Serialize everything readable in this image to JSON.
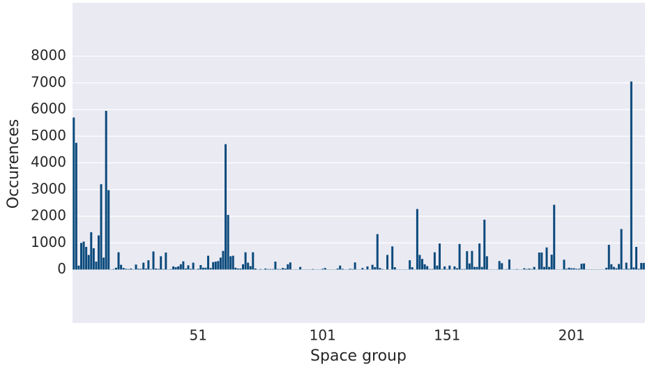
{
  "chart_data": {
    "type": "bar",
    "xlabel": "Space group",
    "ylabel": "Occurences",
    "color": "#0b4a7c",
    "grid": true,
    "ylim": [
      -2000,
      10000
    ],
    "yticks": [
      0,
      1000,
      2000,
      3000,
      4000,
      5000,
      6000,
      7000,
      8000
    ],
    "categories": [
      null,
      null,
      null,
      null,
      null,
      null,
      null,
      null,
      null,
      null,
      null,
      null,
      null,
      null,
      null,
      null,
      null,
      null,
      null,
      null,
      null,
      null,
      null,
      null,
      null,
      null,
      null,
      null,
      null,
      null,
      null,
      null,
      null,
      null,
      null,
      null,
      null,
      null,
      null,
      null,
      null,
      null,
      null,
      null,
      null,
      null,
      null,
      null,
      null,
      null,
      "51",
      null,
      null,
      null,
      null,
      null,
      null,
      null,
      null,
      null,
      null,
      null,
      null,
      null,
      null,
      null,
      null,
      null,
      null,
      null,
      null,
      null,
      null,
      null,
      null,
      null,
      null,
      null,
      null,
      null,
      null,
      null,
      null,
      null,
      null,
      null,
      null,
      null,
      null,
      null,
      null,
      null,
      null,
      null,
      null,
      null,
      null,
      null,
      null,
      null,
      "101",
      null,
      null,
      null,
      null,
      null,
      null,
      null,
      null,
      null,
      null,
      null,
      null,
      null,
      null,
      null,
      null,
      null,
      null,
      null,
      null,
      null,
      null,
      null,
      null,
      null,
      null,
      null,
      null,
      null,
      null,
      null,
      null,
      null,
      null,
      null,
      null,
      null,
      null,
      null,
      null,
      null,
      null,
      null,
      null,
      null,
      null,
      null,
      null,
      null,
      "151",
      null,
      null,
      null,
      null,
      null,
      null,
      null,
      null,
      null,
      null,
      null,
      null,
      null,
      null,
      null,
      null,
      null,
      null,
      null,
      null,
      null,
      null,
      null,
      null,
      null,
      null,
      null,
      null,
      null,
      null,
      null,
      null,
      null,
      null,
      null,
      null,
      null,
      null,
      null,
      null,
      null,
      null,
      null,
      null,
      null,
      null,
      null,
      null,
      null,
      "201",
      null,
      null,
      null,
      null,
      null,
      null,
      null,
      null,
      null,
      null,
      null,
      null,
      null,
      null,
      null,
      null,
      null,
      null,
      null,
      null,
      null,
      null,
      null,
      null,
      null,
      null,
      null,
      null,
      null
    ],
    "values": [
      5700,
      4750,
      150,
      1000,
      1050,
      850,
      550,
      1400,
      800,
      300,
      1280,
      3200,
      450,
      5950,
      2980,
      10,
      20,
      70,
      650,
      180,
      60,
      30,
      20,
      40,
      10,
      190,
      30,
      30,
      260,
      40,
      350,
      20,
      680,
      40,
      30,
      500,
      20,
      640,
      10,
      20,
      120,
      90,
      120,
      200,
      310,
      40,
      160,
      30,
      260,
      10,
      30,
      170,
      70,
      70,
      520,
      60,
      280,
      300,
      320,
      450,
      700,
      4700,
      2050,
      500,
      520,
      70,
      40,
      40,
      200,
      650,
      260,
      130,
      650,
      40,
      10,
      20,
      10,
      40,
      20,
      20,
      20,
      300,
      20,
      20,
      60,
      40,
      200,
      270,
      10,
      10,
      10,
      100,
      10,
      10,
      10,
      10,
      20,
      10,
      10,
      10,
      30,
      60,
      10,
      10,
      10,
      10,
      40,
      150,
      30,
      10,
      10,
      30,
      20,
      270,
      10,
      10,
      60,
      10,
      120,
      10,
      180,
      90,
      1330,
      60,
      20,
      10,
      550,
      10,
      870,
      90,
      10,
      10,
      10,
      10,
      10,
      350,
      90,
      10,
      2270,
      550,
      400,
      200,
      130,
      20,
      20,
      650,
      150,
      980,
      20,
      120,
      20,
      150,
      10,
      120,
      50,
      960,
      20,
      20,
      690,
      230,
      700,
      100,
      100,
      980,
      100,
      1870,
      500,
      10,
      10,
      10,
      10,
      320,
      240,
      10,
      20,
      380,
      10,
      10,
      20,
      10,
      10,
      50,
      20,
      40,
      20,
      100,
      10,
      640,
      640,
      100,
      830,
      100,
      560,
      2430,
      10,
      10,
      10,
      370,
      30,
      70,
      50,
      50,
      30,
      30,
      220,
      230,
      10,
      10,
      10,
      10,
      10,
      10,
      10,
      10,
      70,
      930,
      200,
      100,
      50,
      210,
      1520,
      20,
      260,
      30,
      7050,
      80,
      850,
      30,
      250,
      250
    ]
  }
}
